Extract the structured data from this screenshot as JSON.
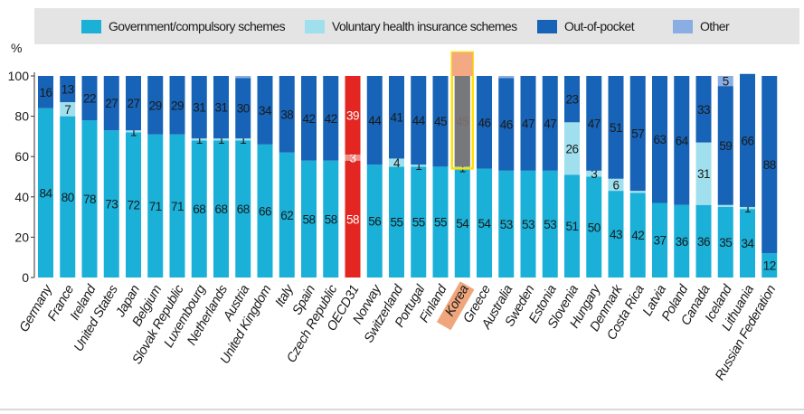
{
  "chart_data": {
    "type": "bar",
    "stacked": true,
    "title": "",
    "xlabel": "",
    "ylabel": "%",
    "ylim": [
      0,
      100
    ],
    "yticks": [
      0,
      20,
      40,
      60,
      80,
      100
    ],
    "grid": false,
    "legend_position": "top",
    "categories": [
      "Germany",
      "France",
      "Ireland",
      "United States",
      "Japan",
      "Belgium",
      "Slovak Republic",
      "Luxembourg",
      "Netherlands",
      "Austria",
      "United Kingdom",
      "Italy",
      "Spain",
      "Czech Republic",
      "OECD31",
      "Norway",
      "Switzerland",
      "Portugal",
      "Finland",
      "Korea",
      "Greece",
      "Australia",
      "Sweden",
      "Estonia",
      "Slovenia",
      "Hungary",
      "Denmark",
      "Costa Rica",
      "Latvia",
      "Poland",
      "Canada",
      "Iceland",
      "Lithuania",
      "Russian Federation"
    ],
    "highlight": {
      "average": "OECD31",
      "selected": "Korea"
    },
    "series": [
      {
        "name": "Government/compulsory schemes",
        "color": "#1ab0d8",
        "values": [
          84,
          80,
          78,
          73,
          72,
          71,
          71,
          68,
          68,
          68,
          66,
          62,
          58,
          58,
          58,
          56,
          55,
          55,
          55,
          54,
          54,
          53,
          53,
          53,
          51,
          50,
          43,
          42,
          37,
          36,
          36,
          35,
          34,
          12
        ],
        "labels": [
          "84",
          "80",
          "78",
          "73",
          "72",
          "71",
          "71",
          "68",
          "68",
          "68",
          "66",
          "62",
          "58",
          "58",
          "58",
          "56",
          "55",
          "55",
          "55",
          "54",
          "54",
          "53",
          "53",
          "53",
          "51",
          "50",
          "43",
          "42",
          "37",
          "36",
          "36",
          "35",
          "34",
          "12"
        ]
      },
      {
        "name": "Voluntary health insurance schemes",
        "color": "#9fdfee",
        "values": [
          0,
          7,
          0,
          0,
          1,
          0,
          0,
          1,
          1,
          1,
          0,
          0,
          0,
          0,
          3,
          0,
          4,
          1,
          0,
          1,
          0,
          0,
          0,
          0,
          26,
          3,
          6,
          1,
          0,
          0,
          31,
          1,
          1,
          0
        ],
        "labels": [
          "",
          "7",
          "",
          "",
          "1",
          "",
          "",
          "1",
          "1",
          "1",
          "",
          "",
          "",
          "",
          "3",
          "",
          "4",
          "1",
          "",
          "1",
          "",
          "",
          "",
          "",
          "26",
          "3",
          "6",
          "",
          "",
          "",
          "31",
          "",
          "1",
          ""
        ]
      },
      {
        "name": "Out-of-pocket",
        "color": "#1763b7",
        "values": [
          16,
          13,
          22,
          27,
          27,
          29,
          29,
          31,
          31,
          30,
          34,
          38,
          42,
          42,
          39,
          44,
          41,
          44,
          45,
          45,
          46,
          46,
          47,
          47,
          23,
          47,
          51,
          57,
          63,
          64,
          33,
          59,
          66,
          88
        ],
        "labels": [
          "16",
          "13",
          "22",
          "27",
          "27",
          "29",
          "29",
          "31",
          "31",
          "30",
          "34",
          "38",
          "42",
          "42",
          "39",
          "44",
          "41",
          "44",
          "45",
          "45",
          "46",
          "46",
          "47",
          "47",
          "23",
          "47",
          "51",
          "57",
          "63",
          "64",
          "33",
          "59",
          "66",
          "88"
        ]
      },
      {
        "name": "Other",
        "color": "#8aaee3",
        "values": [
          0,
          0,
          0,
          0,
          0,
          0,
          0,
          0,
          0,
          1,
          0,
          0,
          0,
          0,
          0,
          0,
          0,
          0,
          0,
          0,
          0,
          1,
          0,
          0,
          0,
          0,
          0,
          0,
          0,
          0,
          0,
          5,
          0,
          0
        ],
        "labels": [
          "",
          "",
          "",
          "",
          "",
          "",
          "",
          "",
          "",
          "",
          "",
          "",
          "",
          "",
          "",
          "",
          "",
          "",
          "",
          "",
          "",
          "",
          "",
          "",
          "",
          "",
          "",
          "",
          "",
          "",
          "",
          "5",
          "",
          ""
        ]
      }
    ]
  },
  "colors": {
    "average_bar": "#e32621",
    "selected_label_bg": "#f0a67c",
    "selected_outline": "#ffe000",
    "selected_overlay": "#8a7a72"
  }
}
